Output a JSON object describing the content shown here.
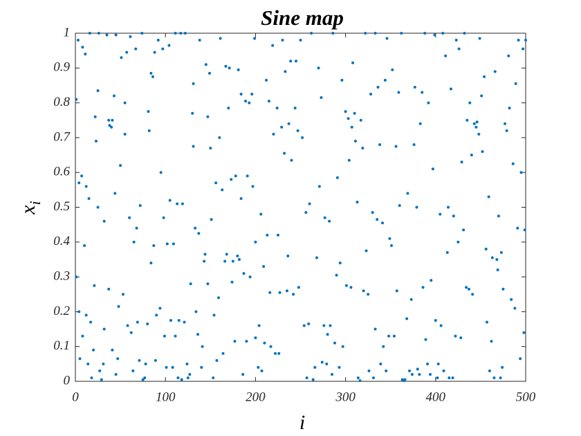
{
  "chart_data": {
    "type": "scatter",
    "title": "Sine map",
    "xlabel": "i",
    "ylabel": {
      "base": "x",
      "subscript": "i"
    },
    "color": "#0072BD",
    "xlim": [
      0,
      500
    ],
    "xticks": [
      0,
      100,
      200,
      300,
      400,
      500
    ],
    "ylim": [
      0,
      1
    ],
    "yticks": [
      0,
      0.1,
      0.2,
      0.3,
      0.4,
      0.5,
      0.6,
      0.7,
      0.8,
      0.9,
      1
    ],
    "x": [
      1,
      1,
      3,
      4,
      4,
      5,
      7,
      8,
      8,
      10,
      11,
      12,
      12,
      14,
      15,
      16,
      17,
      18,
      20,
      21,
      22,
      23,
      25,
      25,
      26,
      27,
      29,
      31,
      32,
      32,
      35,
      37,
      37,
      38,
      40,
      41,
      41,
      43,
      44,
      45,
      45,
      47,
      48,
      50,
      51,
      53,
      55,
      55,
      57,
      58,
      60,
      61,
      62,
      64,
      65,
      67,
      68,
      69,
      71,
      72,
      74,
      75,
      77,
      78,
      80,
      81,
      82,
      84,
      84,
      86,
      87,
      88,
      89,
      90,
      92,
      94,
      95,
      97,
      98,
      99,
      101,
      102,
      104,
      105,
      106,
      108,
      109,
      111,
      111,
      113,
      114,
      115,
      117,
      118,
      119,
      121,
      122,
      124,
      125,
      127,
      128,
      130,
      131,
      131,
      133,
      134,
      136,
      137,
      138,
      140,
      141,
      143,
      144,
      145,
      147,
      147,
      149,
      150,
      151,
      153,
      154,
      156,
      157,
      159,
      160,
      161,
      163,
      164,
      166,
      167,
      168,
      170,
      171,
      173,
      174,
      175,
      177,
      178,
      180,
      181,
      182,
      184,
      184,
      186,
      187,
      189,
      190,
      191,
      193,
      194,
      196,
      197,
      199,
      200,
      200,
      203,
      204,
      206,
      207,
      209,
      210,
      212,
      213,
      215,
      216,
      217,
      219,
      220,
      222,
      224,
      225,
      226,
      227,
      229,
      230,
      232,
      233,
      235,
      236,
      237,
      239,
      240,
      242,
      244,
      245,
      247,
      248,
      250,
      252,
      254,
      256,
      257,
      259,
      260,
      262,
      264,
      266,
      268,
      270,
      271,
      273,
      274,
      276,
      277,
      279,
      280,
      282,
      283,
      285,
      286,
      288,
      290,
      291,
      293,
      294,
      296,
      297,
      300,
      301,
      303,
      304,
      306,
      307,
      308,
      310,
      311,
      313,
      314,
      316,
      317,
      319,
      320,
      322,
      323,
      325,
      326,
      328,
      330,
      331,
      333,
      333,
      335,
      336,
      338,
      339,
      341,
      342,
      344,
      345,
      346,
      348,
      349,
      351,
      352,
      354,
      356,
      357,
      359,
      360,
      362,
      363,
      365,
      366,
      368,
      369,
      371,
      373,
      374,
      376,
      377,
      379,
      380,
      382,
      383,
      385,
      386,
      388,
      389,
      391,
      392,
      394,
      395,
      397,
      399,
      400,
      402,
      403,
      405,
      406,
      408,
      409,
      411,
      413,
      414,
      415,
      417,
      419,
      420,
      422,
      423,
      425,
      426,
      428,
      429,
      431,
      432,
      434,
      435,
      437,
      438,
      440,
      441,
      443,
      445,
      446,
      448,
      449,
      451,
      452,
      454,
      456,
      457,
      459,
      460,
      462,
      463,
      465,
      466,
      468,
      469,
      470,
      472,
      473,
      474,
      475,
      477,
      479,
      481,
      482,
      484,
      486,
      488,
      489,
      491,
      492,
      494,
      495,
      497,
      498,
      499,
      500
    ],
    "values": [
      0.81,
      0.3,
      0.98,
      0.57,
      0.2,
      0.065,
      0.59,
      0.96,
      0.13,
      0.39,
      0.94,
      0.19,
      0.56,
      0.05,
      0.525,
      1,
      0.17,
      0.01,
      0.09,
      0.275,
      0.76,
      0.69,
      0.835,
      0.5,
      1,
      0.03,
      0.005,
      0.05,
      0.46,
      0.15,
      0.995,
      0.265,
      0.75,
      0.735,
      0.73,
      0.75,
      0.09,
      0.82,
      0.54,
      0.02,
      0.995,
      0.065,
      0.215,
      0.62,
      0.93,
      0.25,
      0.8,
      0.71,
      0.945,
      0.16,
      0.47,
      0.99,
      0.14,
      0.03,
      0.4,
      0.955,
      0.44,
      0.17,
      0.06,
      0.505,
      1,
      0.005,
      0.01,
      0.05,
      0.165,
      0.775,
      0.72,
      0.885,
      0.34,
      0.875,
      0.39,
      0.945,
      0.06,
      0.19,
      0.98,
      0.21,
      0.6,
      0.955,
      0.47,
      0.13,
      0.04,
      0.395,
      0.965,
      0.52,
      0.175,
      0.04,
      0.395,
      1,
      0.13,
      0.51,
      0.01,
      0.175,
      1,
      0.005,
      0.51,
      0.17,
      1,
      0.05,
      0.01,
      0.02,
      0.28,
      0.77,
      0.675,
      0.855,
      0.44,
      0.2,
      0.135,
      0.425,
      0.98,
      0.04,
      0.1,
      0.345,
      0.365,
      0.91,
      0.28,
      0.76,
      0.885,
      0.67,
      0.465,
      0.01,
      0.19,
      0.57,
      0.06,
      0.24,
      0.7,
      0.985,
      0.55,
      0.08,
      0.345,
      0.905,
      0.365,
      0.785,
      0.9,
      0.58,
      0.285,
      0.345,
      0.115,
      0.59,
      0.36,
      0.895,
      0.35,
      0.825,
      0.525,
      0.02,
      0.31,
      0.805,
      0.115,
      0.59,
      0.8,
      0.3,
      0.825,
      0.56,
      0.985,
      0.4,
      0.125,
      0.04,
      0.16,
      0.48,
      0.03,
      0.33,
      0.11,
      0.865,
      0.42,
      0.805,
      0.255,
      0.1,
      0.965,
      0.71,
      0.08,
      0.785,
      0.42,
      0.08,
      0.255,
      0.73,
      0.98,
      0.655,
      0.89,
      0.26,
      0.36,
      0.74,
      0.92,
      0.635,
      0.25,
      0.785,
      0.92,
      0.72,
      0.27,
      0.98,
      0.7,
      0.16,
      0.485,
      0.01,
      0.165,
      0.51,
      1,
      0.005,
      0.04,
      0.355,
      0.9,
      0.56,
      0.815,
      0.055,
      0.16,
      0.47,
      0.05,
      0.135,
      0.46,
      0.16,
      0.02,
      1,
      0.11,
      0.305,
      0.585,
      0.04,
      0.34,
      0.865,
      0.1,
      0.775,
      0.275,
      0.755,
      0.635,
      0.27,
      0.73,
      0.915,
      0.77,
      0.69,
      0.515,
      0.01,
      0.002,
      0.75,
      0.67,
      0.26,
      1,
      0.375,
      0.25,
      0.03,
      0.825,
      0.485,
      0.01,
      1,
      0.15,
      0.465,
      0.845,
      0.68,
      0.05,
      0.455,
      0.1,
      0.865,
      0.03,
      0.985,
      0.13,
      0.41,
      0.39,
      0.895,
      0.13,
      0.675,
      0.26,
      0.83,
      0.505,
      1,
      0.005,
      0.002,
      0.005,
      0.18,
      0.54,
      0.03,
      0.235,
      0.02,
      0.68,
      0.845,
      0.5,
      0.035,
      0.02,
      0.74,
      0.83,
      0.27,
      1,
      0.12,
      0.05,
      0.8,
      0.02,
      0.29,
      0.61,
      0.995,
      0.175,
      0.01,
      0.05,
      0.48,
      0.16,
      1,
      0.03,
      0.935,
      0.37,
      0.5,
      0.01,
      0.84,
      0.01,
      0.475,
      0.13,
      0.98,
      0.4,
      0.955,
      0.125,
      0.63,
      0.435,
      1,
      0.27,
      0.75,
      0.265,
      0.8,
      0.65,
      0.25,
      0.74,
      0.73,
      0.745,
      0.71,
      0.985,
      0.82,
      0.66,
      0.875,
      0.38,
      0.17,
      0.53,
      0.03,
      0.115,
      0.355,
      0.01,
      0.89,
      0.35,
      0.32,
      0.475,
      0.01,
      0.37,
      0.04,
      0.265,
      0.74,
      0.72,
      0.935,
      0.785,
      0.235,
      0.625,
      0.21,
      0.855,
      0.44,
      0.98,
      0.065,
      0.6,
      0.955,
      0.14,
      0.435,
      0.98
    ]
  }
}
